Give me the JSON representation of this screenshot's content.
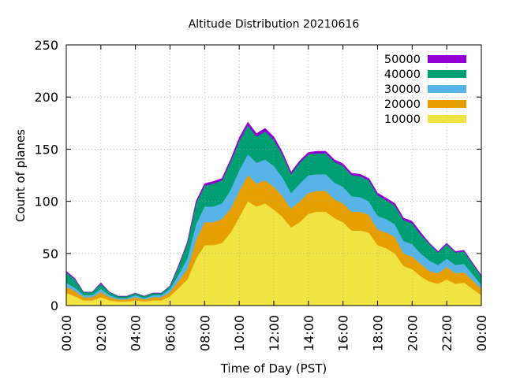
{
  "chart_data": {
    "type": "area",
    "title": "Altitude Distribution 20210616",
    "xlabel": "Time of Day (PST)",
    "ylabel": "Count of planes",
    "ylim": [
      0,
      250
    ],
    "yticks": [
      0,
      50,
      100,
      150,
      200,
      250
    ],
    "xlim": [
      "00:00",
      "24:00"
    ],
    "xtick_labels": [
      "00:00",
      "02:00",
      "04:00",
      "06:00",
      "08:00",
      "10:00",
      "12:00",
      "14:00",
      "16:00",
      "18:00",
      "20:00",
      "22:00",
      "00:00"
    ],
    "stacked": true,
    "legend_position": "top-right",
    "grid": true,
    "x": [
      "00:00",
      "00:30",
      "01:00",
      "01:30",
      "02:00",
      "02:30",
      "03:00",
      "03:30",
      "04:00",
      "04:30",
      "05:00",
      "05:30",
      "06:00",
      "06:30",
      "07:00",
      "07:30",
      "08:00",
      "08:30",
      "09:00",
      "09:30",
      "10:00",
      "10:30",
      "11:00",
      "11:30",
      "12:00",
      "12:30",
      "13:00",
      "13:30",
      "14:00",
      "14:30",
      "15:00",
      "15:30",
      "16:00",
      "16:30",
      "17:00",
      "17:30",
      "18:00",
      "18:30",
      "19:00",
      "19:30",
      "20:00",
      "20:30",
      "21:00",
      "21:30",
      "22:00",
      "22:30",
      "23:00",
      "23:30",
      "24:00"
    ],
    "series": [
      {
        "name": "10000",
        "color": "#f0e442",
        "values": [
          12,
          9,
          5,
          5,
          8,
          5,
          4,
          4,
          5,
          4,
          5,
          5,
          9,
          17,
          25,
          45,
          58,
          58,
          60,
          70,
          85,
          100,
          95,
          98,
          92,
          85,
          75,
          80,
          88,
          90,
          90,
          84,
          80,
          72,
          72,
          70,
          58,
          55,
          50,
          38,
          35,
          28,
          23,
          21,
          25,
          21,
          22,
          16,
          10
        ]
      },
      {
        "name": "20000",
        "color": "#e69f00",
        "values": [
          6,
          5,
          3,
          3,
          5,
          3,
          2,
          2,
          3,
          2,
          3,
          3,
          4,
          7,
          10,
          18,
          22,
          22,
          23,
          23,
          25,
          25,
          22,
          22,
          22,
          20,
          18,
          20,
          20,
          20,
          20,
          18,
          18,
          18,
          18,
          17,
          15,
          15,
          16,
          12,
          12,
          12,
          10,
          10,
          12,
          10,
          10,
          8,
          6
        ]
      },
      {
        "name": "30000",
        "color": "#56b4e9",
        "values": [
          4,
          3,
          2,
          2,
          3,
          2,
          1,
          1,
          2,
          1,
          2,
          2,
          3,
          6,
          10,
          15,
          15,
          15,
          15,
          18,
          20,
          20,
          20,
          20,
          20,
          18,
          15,
          17,
          17,
          16,
          16,
          16,
          16,
          15,
          14,
          13,
          13,
          13,
          12,
          12,
          12,
          10,
          10,
          8,
          8,
          8,
          8,
          6,
          4
        ]
      },
      {
        "name": "40000",
        "color": "#009e73",
        "values": [
          10,
          8,
          3,
          3,
          5,
          3,
          2,
          2,
          2,
          2,
          2,
          2,
          3,
          8,
          15,
          20,
          20,
          22,
          22,
          27,
          28,
          28,
          25,
          27,
          25,
          22,
          18,
          20,
          20,
          20,
          20,
          20,
          20,
          20,
          20,
          20,
          20,
          18,
          18,
          20,
          20,
          18,
          16,
          12,
          14,
          12,
          12,
          10,
          8
        ]
      },
      {
        "name": "50000",
        "color": "#9400d3",
        "values": [
          1,
          1,
          0,
          0,
          1,
          0,
          0,
          0,
          0,
          0,
          0,
          0,
          0,
          1,
          1,
          2,
          2,
          2,
          2,
          2,
          3,
          3,
          3,
          3,
          3,
          2,
          2,
          2,
          2,
          2,
          2,
          2,
          2,
          2,
          2,
          2,
          2,
          2,
          2,
          2,
          2,
          2,
          1,
          1,
          1,
          1,
          1,
          1,
          1
        ]
      }
    ]
  }
}
